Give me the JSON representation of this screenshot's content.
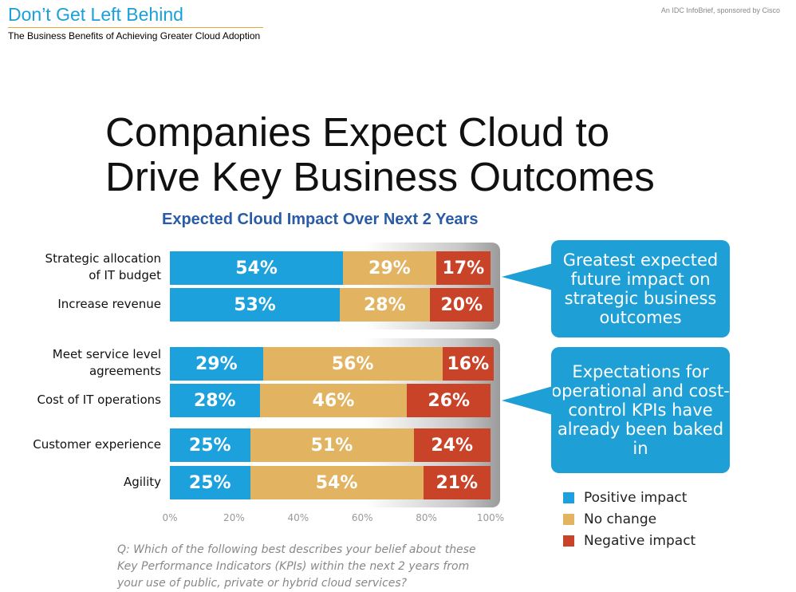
{
  "header": {
    "title": "Don’t Get Left Behind",
    "subtitle": "The Business Benefits of Achieving Greater Cloud Adoption",
    "brand": "An IDC InfoBrief, sponsored by Cisco"
  },
  "headline": {
    "line1": "Companies Expect Cloud to",
    "line2": "Drive Key Business Outcomes"
  },
  "colors": {
    "positive": "#1ca1dd",
    "no_change": "#e2b461",
    "negative": "#c94329",
    "callout": "#1ea0d6",
    "chart_title": "#2a5ba6"
  },
  "chart_data": {
    "type": "bar",
    "orientation": "horizontal",
    "stacked": true,
    "normalized_to_percent": true,
    "title": "Expected Cloud Impact Over Next 2 Years",
    "categories": [
      "Strategic allocation of IT budget",
      "Increase revenue",
      "Meet service level agreements",
      "Cost of IT operations",
      "Customer experience",
      "Agility"
    ],
    "category_lines": [
      [
        "Strategic allocation",
        "of IT budget"
      ],
      [
        "Increase revenue"
      ],
      [
        "Meet service level",
        "agreements"
      ],
      [
        "Cost of IT operations"
      ],
      [
        "Customer experience"
      ],
      [
        "Agility"
      ]
    ],
    "series": [
      {
        "name": "Positive impact",
        "color": "#1ca1dd",
        "values": [
          54,
          53,
          29,
          28,
          25,
          25
        ]
      },
      {
        "name": "No change",
        "color": "#e2b461",
        "values": [
          29,
          28,
          56,
          46,
          51,
          54
        ]
      },
      {
        "name": "Negative impact",
        "color": "#c94329",
        "values": [
          17,
          20,
          16,
          26,
          24,
          21
        ]
      }
    ],
    "x_ticks": [
      "0%",
      "20%",
      "40%",
      "60%",
      "80%",
      "100%"
    ],
    "xlim": [
      0,
      100
    ],
    "grid": false,
    "legend_position": "bottom-right"
  },
  "callouts": [
    {
      "text": "Greatest expected future impact on strategic business outcomes"
    },
    {
      "text": "Expectations for operational and cost-control KPIs have already been baked in"
    }
  ],
  "footnote": "Q: Which of the following best describes your belief about these Key Performance Indicators (KPIs) within the next 2 years from your use of public, private or hybrid cloud services?"
}
